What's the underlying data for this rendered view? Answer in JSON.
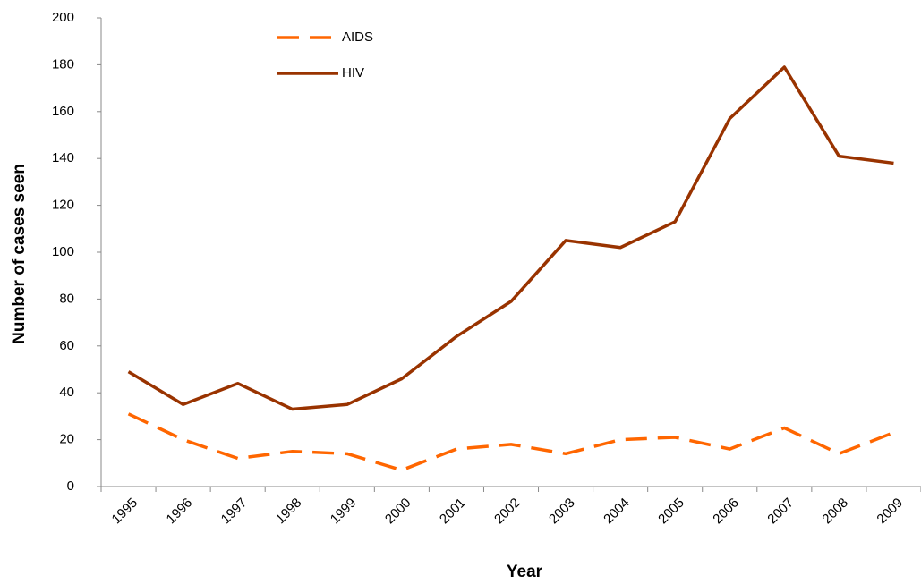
{
  "chart_data": {
    "type": "line",
    "x_label": "Year",
    "y_label": "Number of cases seen",
    "categories": [
      "1995",
      "1996",
      "1997",
      "1998",
      "1999",
      "2000",
      "2001",
      "2002",
      "2003",
      "2004",
      "2005",
      "2006",
      "2007",
      "2008",
      "2009"
    ],
    "series": [
      {
        "name": "AIDS",
        "color": "#ff6600",
        "dashed": true,
        "values": [
          31,
          20,
          12,
          15,
          14,
          7,
          16,
          18,
          14,
          20,
          21,
          16,
          25,
          14,
          23
        ]
      },
      {
        "name": "HIV",
        "color": "#993300",
        "dashed": false,
        "values": [
          49,
          35,
          44,
          33,
          35,
          46,
          64,
          79,
          105,
          102,
          113,
          157,
          179,
          141,
          138
        ]
      }
    ],
    "ylim": [
      0,
      200
    ],
    "yticks": [
      0,
      20,
      40,
      60,
      80,
      100,
      120,
      140,
      160,
      180,
      200
    ],
    "grid": false
  }
}
